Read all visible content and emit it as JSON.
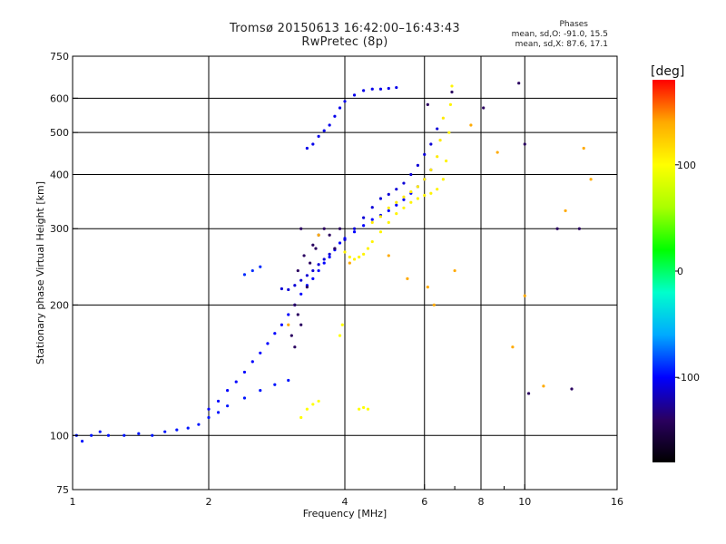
{
  "chart_data": {
    "type": "scatter",
    "title": "Tromsø 20150613 16:42:00–16:43:43",
    "subtitle": "RwPretec (8p)",
    "xlabel": "Frequency [MHz]",
    "ylabel": "Stationary phase Virtual Height [km]",
    "x_scale": "log",
    "y_scale": "log",
    "xlim": [
      1,
      16
    ],
    "ylim": [
      75,
      750
    ],
    "x_ticks": [
      1,
      2,
      4,
      6,
      8,
      10,
      16
    ],
    "x_minor_ticks": [
      7,
      9
    ],
    "y_ticks": [
      75,
      100,
      200,
      300,
      400,
      500,
      600,
      750
    ],
    "y_grid": [
      100,
      200,
      300,
      400,
      500,
      600
    ],
    "x_grid": [
      2,
      4,
      6,
      8,
      10
    ],
    "grid": true,
    "stats": {
      "heading": "Phases",
      "line_O": "mean, sd,O: -91.0, 15.5",
      "line_X": "mean, sd,X:  87.6, 17.1"
    },
    "colorbar": {
      "label": "[deg]",
      "min": -180,
      "max": 180,
      "ticks": [
        -100,
        0,
        100
      ],
      "colors": [
        "#000000",
        "#2a0060",
        "#0000ff",
        "#00aaff",
        "#00ffcc",
        "#00ff00",
        "#aaff00",
        "#ffff00",
        "#ffaa00",
        "#ff0000"
      ]
    },
    "series": [
      {
        "phase": -95,
        "x": [
          1.02,
          1.05,
          1.1,
          1.15,
          1.2,
          1.3,
          1.4,
          1.5,
          1.6,
          1.7,
          1.8,
          1.9,
          2.0,
          2.1,
          2.2,
          2.4,
          2.6,
          2.8,
          3.0
        ],
        "y": [
          100,
          97,
          100,
          102,
          100,
          100,
          101,
          100,
          102,
          103,
          104,
          106,
          110,
          113,
          117,
          122,
          127,
          131,
          134
        ]
      },
      {
        "phase": -100,
        "x": [
          2.0,
          2.1,
          2.2,
          2.3,
          2.4,
          2.5,
          2.6,
          2.7,
          2.8,
          2.9,
          3.0,
          3.1,
          3.2,
          3.3,
          3.4,
          3.5,
          3.6,
          3.7,
          3.8,
          3.9,
          4.0,
          4.2,
          4.4,
          4.6,
          4.8,
          5.0,
          5.2,
          5.4,
          5.6,
          5.8,
          6.0,
          6.2
        ],
        "y": [
          115,
          120,
          127,
          133,
          140,
          148,
          155,
          163,
          172,
          180,
          190,
          200,
          212,
          222,
          230,
          240,
          250,
          258,
          268,
          278,
          285,
          295,
          305,
          315,
          322,
          330,
          340,
          350,
          362,
          375,
          390,
          410
        ]
      },
      {
        "phase": -110,
        "x": [
          2.9,
          3.0,
          3.1,
          3.2,
          3.3,
          3.4,
          3.5,
          3.6,
          3.7,
          3.8,
          4.0,
          4.2,
          4.4,
          4.6,
          4.8,
          5.0,
          5.2,
          5.4,
          5.6,
          5.8,
          6.0,
          6.2,
          6.4
        ],
        "y": [
          218,
          217,
          222,
          228,
          234,
          240,
          248,
          255,
          262,
          270,
          283,
          300,
          318,
          336,
          352,
          360,
          370,
          382,
          400,
          420,
          445,
          470,
          510
        ]
      },
      {
        "phase": -105,
        "x": [
          3.3,
          3.4,
          3.5,
          3.6,
          3.7,
          3.8,
          3.9,
          4.0,
          4.2,
          4.4,
          4.6,
          4.8,
          5.0,
          5.2
        ],
        "y": [
          460,
          470,
          490,
          505,
          520,
          545,
          570,
          590,
          610,
          625,
          630,
          630,
          632,
          635
        ]
      },
      {
        "phase": -140,
        "x": [
          3.05,
          3.1,
          3.1,
          3.15,
          3.15,
          3.2,
          3.2,
          3.25,
          3.3,
          3.35,
          3.4,
          3.45,
          3.5,
          3.6,
          3.7,
          3.8,
          3.9
        ],
        "y": [
          170,
          160,
          200,
          190,
          240,
          180,
          300,
          260,
          220,
          250,
          275,
          270,
          290,
          300,
          290,
          270,
          300
        ]
      },
      {
        "phase": -90,
        "x": [
          2.4,
          2.5,
          2.6
        ],
        "y": [
          235,
          240,
          245
        ]
      },
      {
        "phase": 105,
        "x": [
          4.0,
          4.1,
          4.2,
          4.3,
          4.4,
          4.5,
          4.6,
          4.8,
          5.0,
          5.2,
          5.4,
          5.6,
          5.8,
          6.0,
          6.2,
          6.4,
          6.6,
          6.7,
          6.8,
          6.85,
          6.9
        ],
        "y": [
          265,
          258,
          255,
          258,
          262,
          270,
          280,
          295,
          310,
          325,
          335,
          345,
          352,
          358,
          362,
          370,
          390,
          430,
          500,
          580,
          640
        ]
      },
      {
        "phase": 110,
        "x": [
          4.6,
          4.8,
          5.0,
          5.2,
          5.4,
          5.6,
          5.8,
          6.0,
          6.2,
          6.4,
          6.5,
          6.6
        ],
        "y": [
          310,
          320,
          335,
          345,
          355,
          365,
          375,
          390,
          410,
          440,
          480,
          540
        ]
      },
      {
        "phase": 100,
        "x": [
          3.2,
          3.3,
          3.4,
          3.5,
          3.9,
          3.95,
          4.3,
          4.4,
          4.5
        ],
        "y": [
          110,
          115,
          118,
          120,
          170,
          180,
          115,
          116,
          115
        ]
      },
      {
        "phase": 140,
        "x": [
          3.0,
          3.5,
          4.1,
          5.0,
          5.5,
          6.1,
          6.3,
          7.0,
          7.6,
          8.7,
          9.4,
          10.0,
          11.0,
          12.3,
          13.5,
          14.0
        ],
        "y": [
          180,
          290,
          250,
          260,
          230,
          220,
          200,
          240,
          520,
          450,
          160,
          210,
          130,
          330,
          460,
          390
        ]
      },
      {
        "phase": -140,
        "x": [
          6.1,
          6.9,
          8.1,
          9.7,
          10.0,
          10.2,
          11.8,
          12.7,
          13.2
        ],
        "y": [
          580,
          620,
          570,
          650,
          470,
          125,
          300,
          128,
          300
        ]
      }
    ]
  }
}
